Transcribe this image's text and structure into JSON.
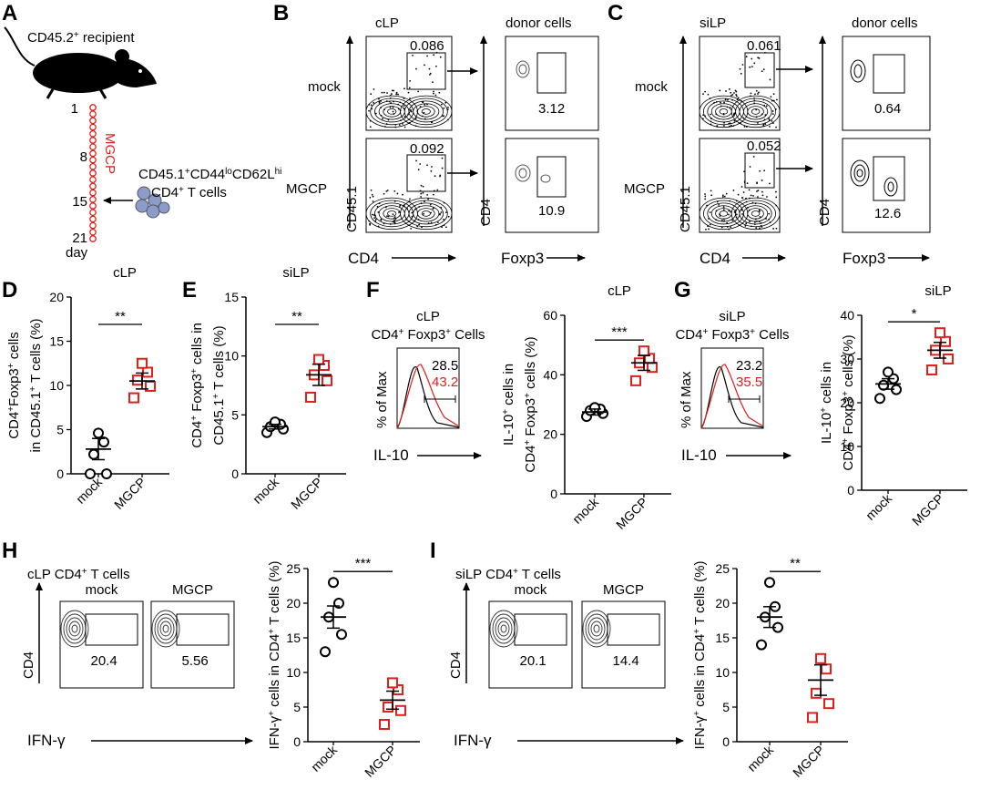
{
  "panel_a": {
    "letter": "A",
    "recipient_label": "CD45.2",
    "recipient_sup": "+",
    "recipient_rest": " recipient",
    "day_ticks": [
      "1",
      "8",
      "15",
      "21"
    ],
    "day_label": "day",
    "mgcp_label": "MGCP",
    "transfer_line1_parts": [
      "CD45.1",
      "+",
      "CD44",
      "lo",
      "CD62L",
      "hi"
    ],
    "transfer_line2_parts": [
      "CD4",
      "+",
      " T cells"
    ]
  },
  "panel_b": {
    "letter": "B",
    "tissue": "cLP",
    "donor_title": "donor cells",
    "rows": [
      {
        "name": "mock",
        "gate_value": "0.086",
        "treg_value": "3.12"
      },
      {
        "name": "MGCP",
        "gate_value": "0.092",
        "treg_value": "10.9"
      }
    ],
    "y_axis_left": "CD45.1",
    "x_axis_left": "CD4",
    "y_axis_right": "CD4",
    "x_axis_right": "Foxp3"
  },
  "panel_c": {
    "letter": "C",
    "tissue": "siLP",
    "donor_title": "donor cells",
    "rows": [
      {
        "name": "mock",
        "gate_value": "0.061",
        "treg_value": "0.64"
      },
      {
        "name": "MGCP",
        "gate_value": "0.052",
        "treg_value": "12.6"
      }
    ],
    "y_axis_left": "CD45.1",
    "x_axis_left": "CD4",
    "y_axis_right": "CD4",
    "x_axis_right": "Foxp3"
  },
  "histograms": [
    {
      "letter": "F",
      "tissue": "cLP",
      "gate_parts": [
        "CD4",
        "+",
        " Foxp3",
        "+",
        " Cells"
      ],
      "mock_value": "28.5",
      "mgcp_value": "43.2",
      "ylabel": "% of Max",
      "xlabel": "IL-10"
    },
    {
      "letter": "G",
      "tissue": "siLP",
      "gate_parts": [
        "CD4",
        "+",
        " Foxp3",
        "+",
        " Cells"
      ],
      "mock_value": "23.2",
      "mgcp_value": "35.5",
      "ylabel": "% of Max",
      "xlabel": "IL-10"
    }
  ],
  "ifng_flow": [
    {
      "letter": "H",
      "title_parts": [
        "cLP CD4",
        "+",
        " T cells"
      ],
      "plots": [
        {
          "name": "mock",
          "value": "20.4"
        },
        {
          "name": "MGCP",
          "value": "5.56"
        }
      ],
      "ylabel": "CD4",
      "xlabel": "IFN-γ"
    },
    {
      "letter": "I",
      "title_parts": [
        "siLP CD4",
        "+",
        " T cells"
      ],
      "plots": [
        {
          "name": "mock",
          "value": "20.1"
        },
        {
          "name": "MGCP",
          "value": "14.4"
        }
      ],
      "ylabel": "CD4",
      "xlabel": "IFN-γ"
    }
  ],
  "chart_data": [
    {
      "id": "D",
      "type": "scatter",
      "title": "cLP",
      "ylabel_lines": [
        [
          "CD4",
          "+",
          "Foxp3",
          "+",
          " cells"
        ],
        [
          "in CD45.1",
          "+",
          " T cells (%)"
        ]
      ],
      "categories": [
        "mock",
        "MGCP"
      ],
      "ylim": [
        0,
        20
      ],
      "yticks": [
        0,
        5,
        10,
        15,
        20
      ],
      "series": [
        {
          "name": "mock",
          "color": "#000000",
          "values": [
            0,
            0,
            2.2,
            3.6,
            4.6
          ],
          "mean": 2.8,
          "sem": 1.2
        },
        {
          "name": "MGCP",
          "color": "#e0201c",
          "values": [
            8.6,
            9.9,
            10.6,
            11.5,
            12.5
          ],
          "mean": 10.5,
          "sem": 0.9
        }
      ],
      "significance": "**"
    },
    {
      "id": "E",
      "type": "scatter",
      "title": "siLP",
      "ylabel_lines": [
        [
          "CD4",
          "+",
          " Foxp3",
          "+",
          " cells in"
        ],
        [
          "CD45.1",
          "+",
          " T cells (%)"
        ]
      ],
      "categories": [
        "mock",
        "MGCP"
      ],
      "ylim": [
        0,
        15
      ],
      "yticks": [
        0,
        5,
        10,
        15
      ],
      "series": [
        {
          "name": "mock",
          "color": "#000000",
          "values": [
            3.5,
            3.8,
            4.0,
            4.2,
            4.4
          ],
          "mean": 4.0,
          "sem": 0.2
        },
        {
          "name": "MGCP",
          "color": "#e0201c",
          "values": [
            6.5,
            7.9,
            8.4,
            9.2,
            9.7
          ],
          "mean": 8.4,
          "sem": 0.9
        }
      ],
      "significance": "**"
    },
    {
      "id": "F-chart",
      "type": "scatter",
      "title": "cLP",
      "ylabel_lines": [
        [
          "IL-10",
          "+",
          " cells in"
        ],
        [
          "CD4",
          "+",
          " Foxp3",
          "+",
          " cells (%)"
        ]
      ],
      "categories": [
        "mock",
        "MGCP"
      ],
      "ylim": [
        0,
        60
      ],
      "yticks": [
        0,
        20,
        40,
        60
      ],
      "series": [
        {
          "name": "mock",
          "color": "#000000",
          "values": [
            26,
            27,
            28,
            28.5,
            29
          ],
          "mean": 27.5,
          "sem": 1.0
        },
        {
          "name": "MGCP",
          "color": "#e0201c",
          "values": [
            38,
            42.5,
            44,
            45.5,
            48
          ],
          "mean": 44,
          "sem": 2.5
        }
      ],
      "significance": "***"
    },
    {
      "id": "G-chart",
      "type": "scatter",
      "title": "siLP",
      "ylabel_lines": [
        [
          "IL-10",
          "+",
          " cells in"
        ],
        [
          "CD4",
          "+",
          " Foxp3",
          "+",
          " cells (%)"
        ]
      ],
      "categories": [
        "mock",
        "MGCP"
      ],
      "ylim": [
        0,
        40
      ],
      "yticks": [
        0,
        10,
        20,
        30,
        40
      ],
      "series": [
        {
          "name": "mock",
          "color": "#000000",
          "values": [
            21,
            23,
            24,
            25.5,
            27
          ],
          "mean": 24.3,
          "sem": 1.2
        },
        {
          "name": "MGCP",
          "color": "#e0201c",
          "values": [
            27.5,
            30,
            32,
            34,
            36
          ],
          "mean": 32,
          "sem": 1.8
        }
      ],
      "significance": "*"
    },
    {
      "id": "H-chart",
      "type": "scatter",
      "title": "",
      "ylabel_lines": [
        [
          "IFN-γ",
          "+",
          " cells in CD4",
          "+",
          " T cells (%)"
        ]
      ],
      "categories": [
        "mock",
        "MGCP"
      ],
      "ylim": [
        0,
        25
      ],
      "yticks": [
        0,
        5,
        10,
        15,
        20,
        25
      ],
      "series": [
        {
          "name": "mock",
          "color": "#000000",
          "values": [
            13,
            15.5,
            18,
            20,
            23
          ],
          "mean": 18,
          "sem": 1.6
        },
        {
          "name": "MGCP",
          "color": "#e0201c",
          "values": [
            2.5,
            4.5,
            5,
            7.5,
            8.5
          ],
          "mean": 6,
          "sem": 1.3
        }
      ],
      "significance": "***"
    },
    {
      "id": "I-chart",
      "type": "scatter",
      "title": "",
      "ylabel_lines": [
        [
          "IFN-γ",
          "+",
          " cells in CD4",
          "+",
          " T cells (%)"
        ]
      ],
      "categories": [
        "mock",
        "MGCP"
      ],
      "ylim": [
        0,
        25
      ],
      "yticks": [
        0,
        5,
        10,
        15,
        20,
        25
      ],
      "series": [
        {
          "name": "mock",
          "color": "#000000",
          "values": [
            14,
            16.5,
            18,
            19.5,
            23
          ],
          "mean": 18,
          "sem": 1.5
        },
        {
          "name": "MGCP",
          "color": "#e0201c",
          "values": [
            3.5,
            5.5,
            7,
            10.5,
            12
          ],
          "mean": 8.9,
          "sem": 2.2
        }
      ],
      "significance": "**"
    }
  ]
}
